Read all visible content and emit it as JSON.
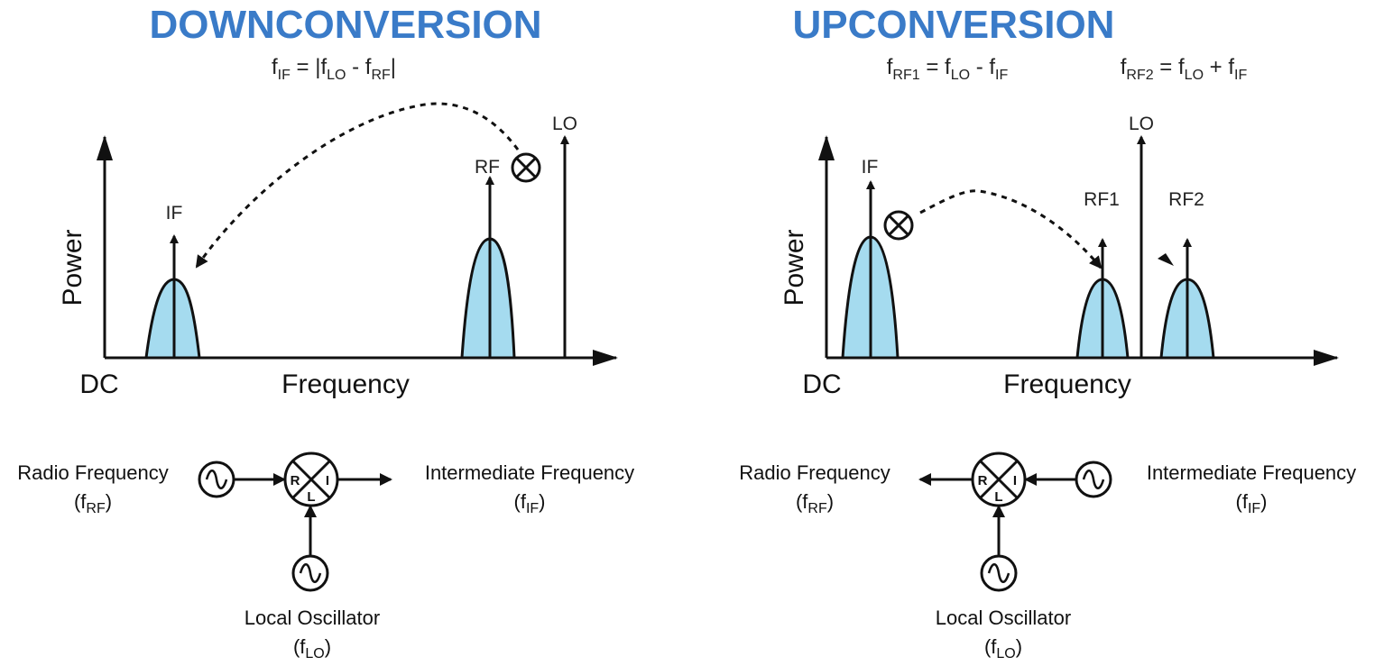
{
  "colors": {
    "title": "#3a7bc8",
    "bell_fill": "#a5dbef",
    "ink": "#111111"
  },
  "down": {
    "title": "DOWNCONVERSION",
    "formula": {
      "f1": "f",
      "s1": "IF",
      "eq": " = |f",
      "s2": "LO",
      "mid": " - f",
      "s3": "RF",
      "end": "|"
    },
    "labels": {
      "if": "IF",
      "rf": "RF",
      "lo": "LO",
      "power": "Power",
      "dc": "DC",
      "frequency": "Frequency"
    },
    "block": {
      "rf_name": "Radio Frequency",
      "rf_f": "(f",
      "rf_sub": "RF",
      "rf_close": ")",
      "if_name": "Intermediate Frequency",
      "if_f": "(f",
      "if_sub": "IF",
      "if_close": ")",
      "lo_name": "Local Oscillator",
      "lo_f": "(f",
      "lo_sub": "LO",
      "lo_close": ")",
      "mixer_r": "R",
      "mixer_i": "I",
      "mixer_l": "L"
    }
  },
  "up": {
    "title": "UPCONVERSION",
    "formula1": {
      "f1": "f",
      "s1": "RF1",
      "eq": " = f",
      "s2": "LO",
      "mid": " - f",
      "s3": "IF"
    },
    "formula2": {
      "f1": "f",
      "s1": "RF2",
      "eq": " = f",
      "s2": "LO",
      "mid": " + f",
      "s3": "IF"
    },
    "labels": {
      "if": "IF",
      "rf1": "RF1",
      "rf2": "RF2",
      "lo": "LO",
      "power": "Power",
      "dc": "DC",
      "frequency": "Frequency"
    },
    "block": {
      "rf_name": "Radio Frequency",
      "rf_f": "(f",
      "rf_sub": "RF",
      "rf_close": ")",
      "if_name": "Intermediate Frequency",
      "if_f": "(f",
      "if_sub": "IF",
      "if_close": ")",
      "lo_name": "Local Oscillator",
      "lo_f": "(f",
      "lo_sub": "LO",
      "lo_close": ")",
      "mixer_r": "R",
      "mixer_i": "I",
      "mixer_l": "L"
    }
  }
}
